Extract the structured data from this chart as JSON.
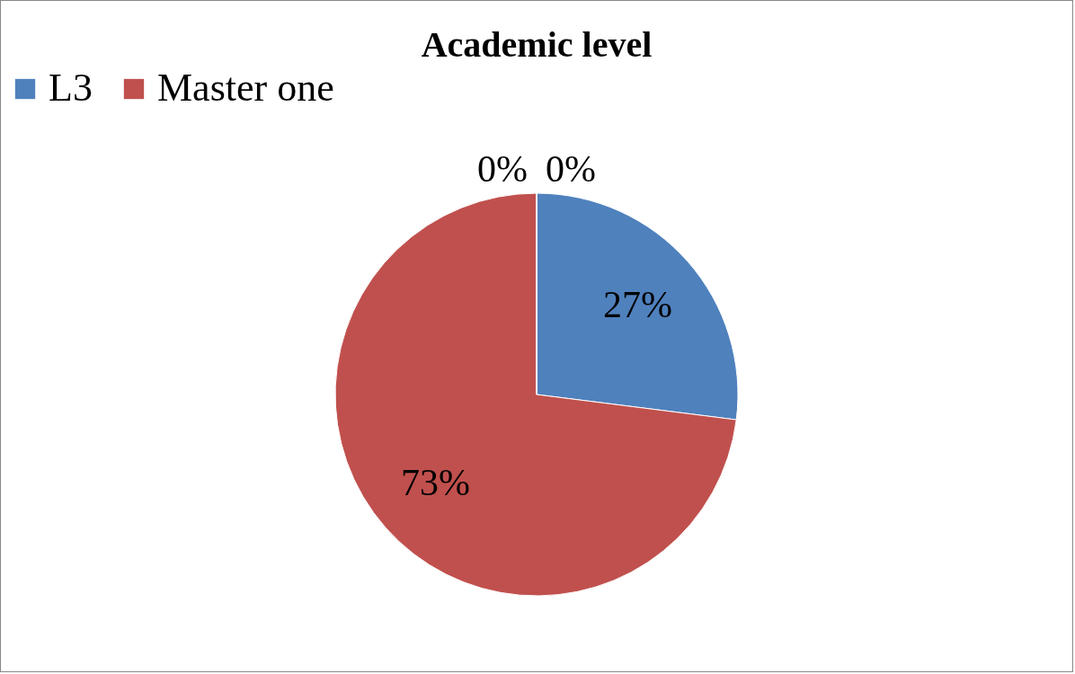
{
  "chart_data": {
    "type": "pie",
    "title": "Academic level",
    "categories": [
      "L3",
      "Master one",
      null,
      null
    ],
    "values": [
      27,
      73,
      0,
      0
    ],
    "colors": [
      "#4f81bd",
      "#c0504d",
      "#9bbb59",
      "#8064a2"
    ],
    "value_labels": [
      "27%",
      "73%",
      "0%",
      "0%"
    ],
    "legend": "top"
  }
}
